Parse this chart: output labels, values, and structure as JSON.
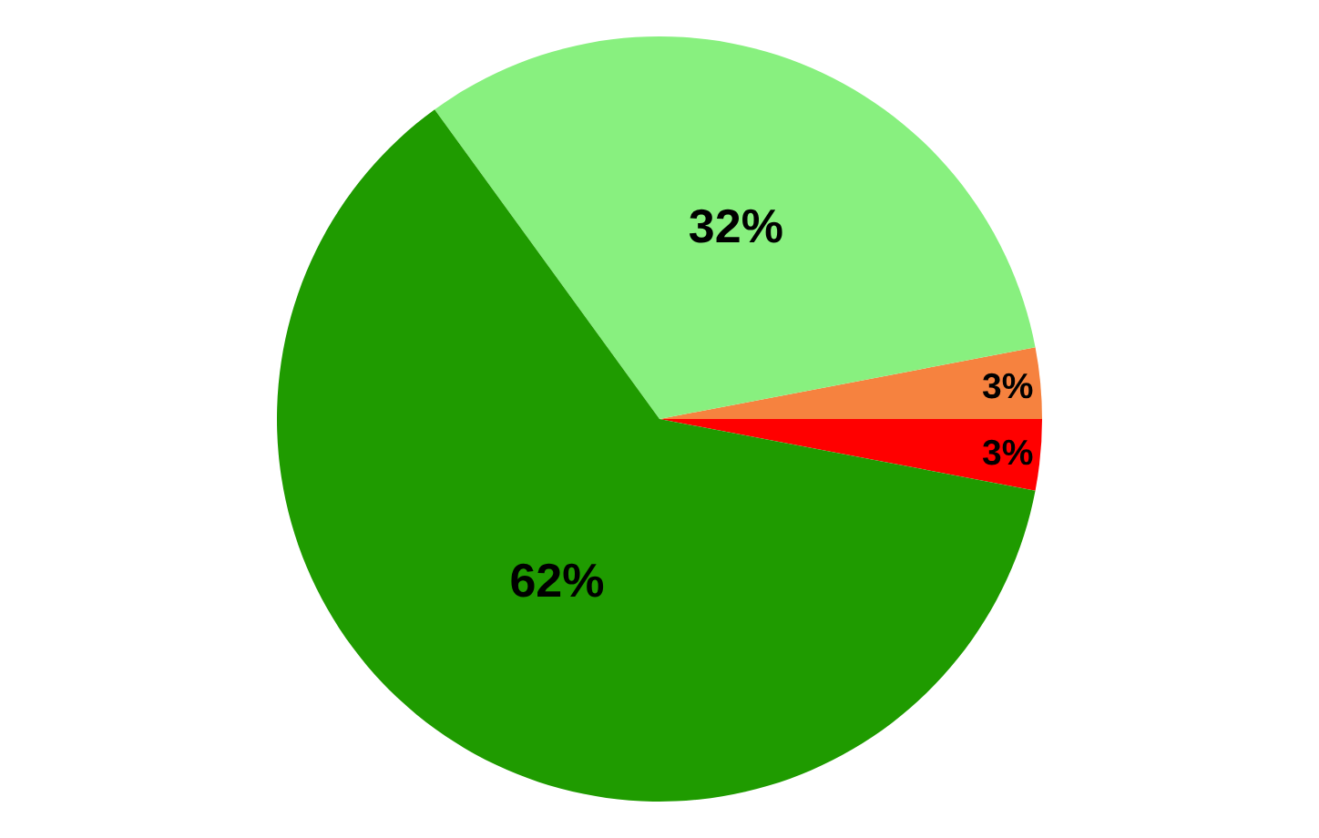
{
  "chart_data": {
    "type": "pie",
    "categories": [
      null,
      null,
      null,
      null
    ],
    "values": [
      3,
      3,
      32,
      62
    ],
    "colors": [
      "#ff0000",
      "#f6823f",
      "#88f07f",
      "#1f9b00"
    ],
    "value_labels": [
      "3%",
      "3%",
      "32%",
      "62%"
    ],
    "legend": false
  }
}
